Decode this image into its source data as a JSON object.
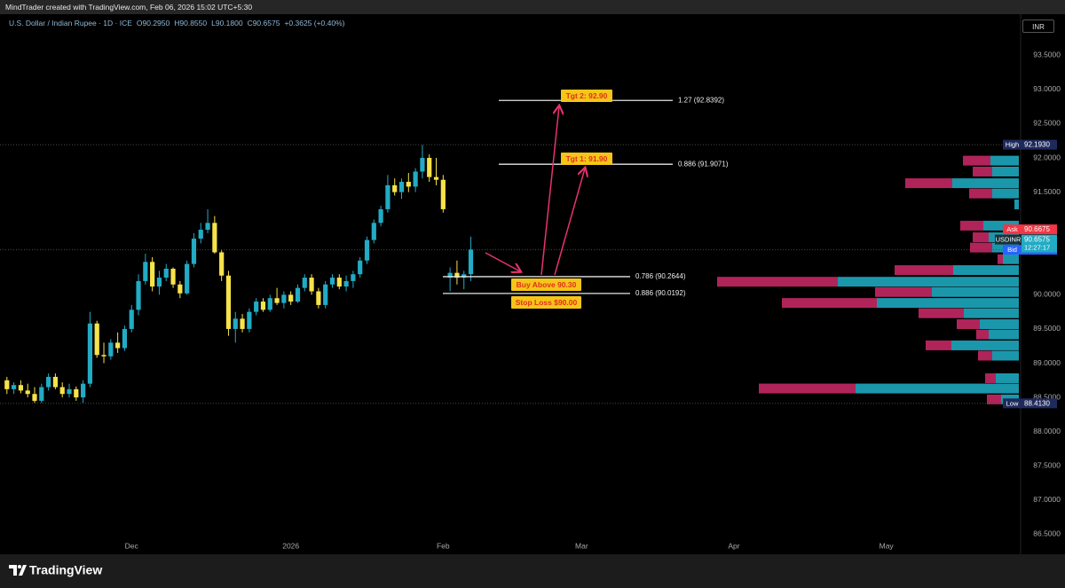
{
  "header": {
    "credit": "MindTrader created with TradingView.com, Feb 06, 2026 15:02 UTC+5:30"
  },
  "chart_data": {
    "type": "candlestick",
    "symbol": "U.S. Dollar / Indian Rupee · 1D · ICE",
    "ohlc_legend": [
      "O90.2950",
      "H90.8550",
      "L90.1800",
      "C90.6575",
      "+0.3625 (+0.40%)"
    ],
    "currency": "INR",
    "open": [
      88.75,
      88.62,
      88.68,
      88.6,
      88.55,
      88.45,
      88.65,
      88.8,
      88.65,
      88.55,
      88.62,
      88.5,
      88.7,
      89.58,
      89.12,
      89.1,
      89.3,
      89.22,
      89.5,
      89.78,
      90.2,
      90.48,
      90.12,
      90.25,
      90.38,
      90.15,
      90.02,
      90.45,
      90.82,
      90.95,
      91.05,
      90.62,
      90.28,
      89.5,
      89.65,
      89.5,
      89.75,
      89.9,
      89.78,
      89.95,
      89.88,
      90.0,
      89.9,
      90.1,
      90.25,
      90.05,
      89.85,
      90.15,
      90.25,
      90.12,
      90.2,
      90.3,
      90.5,
      90.8,
      91.05,
      91.25,
      91.6,
      91.5,
      91.65,
      91.58,
      91.8,
      92.0,
      91.72,
      91.68,
      90.25,
      90.32,
      90.25,
      90.3
    ],
    "high": [
      88.8,
      88.72,
      88.75,
      88.7,
      88.65,
      88.7,
      88.85,
      88.85,
      88.72,
      88.7,
      88.66,
      88.75,
      89.75,
      89.62,
      89.3,
      89.35,
      89.45,
      89.55,
      89.85,
      90.3,
      90.6,
      90.55,
      90.35,
      90.45,
      90.4,
      90.2,
      90.5,
      90.9,
      91.05,
      91.25,
      91.15,
      90.65,
      90.35,
      89.75,
      89.72,
      89.8,
      89.95,
      89.95,
      90.0,
      90.1,
      90.05,
      90.05,
      90.15,
      90.3,
      90.3,
      90.1,
      90.2,
      90.3,
      90.3,
      90.28,
      90.35,
      90.55,
      90.85,
      91.1,
      91.3,
      91.75,
      91.7,
      91.7,
      91.78,
      91.85,
      92.19,
      92.05,
      92.0,
      91.75,
      90.4,
      90.5,
      90.35,
      90.85
    ],
    "low": [
      88.55,
      88.55,
      88.56,
      88.5,
      88.42,
      88.42,
      88.6,
      88.62,
      88.5,
      88.5,
      88.45,
      88.42,
      88.65,
      89.08,
      89.0,
      89.05,
      89.15,
      89.18,
      89.45,
      89.7,
      90.15,
      90.05,
      90.0,
      90.2,
      90.1,
      89.95,
      90.0,
      90.4,
      90.75,
      90.9,
      90.6,
      90.2,
      89.4,
      89.3,
      89.45,
      89.45,
      89.7,
      89.75,
      89.75,
      89.85,
      89.8,
      89.85,
      89.88,
      90.05,
      90.0,
      89.8,
      89.8,
      90.1,
      90.08,
      90.05,
      90.1,
      90.25,
      90.45,
      90.75,
      91.0,
      91.2,
      91.45,
      91.4,
      91.5,
      91.5,
      91.7,
      91.65,
      91.6,
      91.2,
      90.05,
      90.15,
      90.08,
      90.2
    ],
    "close": [
      88.62,
      88.68,
      88.6,
      88.55,
      88.45,
      88.65,
      88.8,
      88.65,
      88.55,
      88.62,
      88.5,
      88.7,
      89.58,
      89.12,
      89.1,
      89.3,
      89.22,
      89.5,
      89.78,
      90.2,
      90.48,
      90.12,
      90.25,
      90.38,
      90.15,
      90.02,
      90.45,
      90.82,
      90.95,
      91.05,
      90.62,
      90.28,
      89.5,
      89.65,
      89.5,
      89.75,
      89.9,
      89.78,
      89.95,
      89.88,
      90.0,
      89.9,
      90.1,
      90.25,
      90.05,
      89.85,
      90.15,
      90.25,
      90.12,
      90.2,
      90.3,
      90.5,
      90.8,
      91.05,
      91.25,
      91.6,
      91.5,
      91.65,
      91.58,
      91.8,
      92.0,
      91.72,
      91.68,
      91.25,
      90.32,
      90.25,
      90.3,
      90.66
    ],
    "up_color": "#22abc4",
    "down_color": "#f7e34a",
    "xlim": [
      -1,
      146.4
    ],
    "xticks": [
      {
        "value": 18,
        "label": "Dec"
      },
      {
        "value": 41,
        "label": "2026"
      },
      {
        "value": 63,
        "label": "Feb"
      },
      {
        "value": 83,
        "label": "Mar"
      },
      {
        "value": 105,
        "label": "Apr"
      },
      {
        "value": 127,
        "label": "May"
      }
    ],
    "ylim": [
      86.22,
      94.1
    ],
    "yticks": [
      {
        "value": 93.5,
        "label": "93.5000"
      },
      {
        "value": 93,
        "label": "93.0000"
      },
      {
        "value": 92.5,
        "label": "92.5000"
      },
      {
        "value": 92,
        "label": "92.0000"
      },
      {
        "value": 91.5,
        "label": "91.5000"
      },
      {
        "value": 90,
        "label": "90.0000"
      },
      {
        "value": 89.5,
        "label": "89.5000"
      },
      {
        "value": 89,
        "label": "89.0000"
      },
      {
        "value": 88.5,
        "label": "88.5000"
      },
      {
        "value": 88,
        "label": "88.0000"
      },
      {
        "value": 87.5,
        "label": "87.5000"
      },
      {
        "value": 87,
        "label": "87.0000"
      },
      {
        "value": 86.5,
        "label": "86.5000"
      }
    ],
    "price_tags": [
      {
        "name": "High",
        "value": 92.193,
        "label": "92.1930",
        "color": "#1f2a5c"
      },
      {
        "name": "Ask",
        "value": 90.6675,
        "label": "90.6675",
        "color": "#f23645"
      },
      {
        "name": "Bid",
        "value": 90.6575,
        "label": "90.6575",
        "color": "#2962ff"
      },
      {
        "name": "USDINR",
        "value": 90.6575,
        "label": "90.6575",
        "countdown": "12:27:17",
        "color": "#22abc4"
      },
      {
        "name": "Low",
        "value": 88.413,
        "label": "88.4130",
        "color": "#1f2a5c"
      }
    ],
    "levels": [
      {
        "value": 92.8392,
        "label": "1.27 (92.8392)"
      },
      {
        "value": 91.9071,
        "label": "0.886 (91.9071)"
      },
      {
        "value": 90.2644,
        "label": "0.786 (90.2644)"
      },
      {
        "value": 90.0192,
        "label": "0.886 (90.0192)"
      }
    ],
    "annotations": [
      "Tgt 2: 92.90",
      "Tgt 1: 91.90",
      "Buy Above 90.30",
      "Stop Loss $90.00"
    ],
    "volume_profile": {
      "prices": [
        91.96,
        91.8,
        91.63,
        91.48,
        91.32,
        91.01,
        90.84,
        90.69,
        90.52,
        90.36,
        90.19,
        90.04,
        89.88,
        89.73,
        89.57,
        89.42,
        89.26,
        89.11,
        88.78,
        88.63,
        88.47
      ],
      "up": [
        32,
        30,
        75,
        30,
        5,
        40,
        34,
        30,
        18,
        74,
        204,
        98,
        160,
        62,
        44,
        34,
        76,
        30,
        26,
        184,
        20
      ],
      "down": [
        31,
        22,
        53,
        26,
        0,
        26,
        18,
        25,
        6,
        66,
        136,
        64,
        107,
        51,
        26,
        14,
        29,
        16,
        12,
        109,
        16
      ],
      "up_color": "#1b97ac",
      "down_color": "#b0245a",
      "vlim": [
        0,
        340
      ]
    }
  },
  "footer": {
    "brand": "TradingView"
  }
}
